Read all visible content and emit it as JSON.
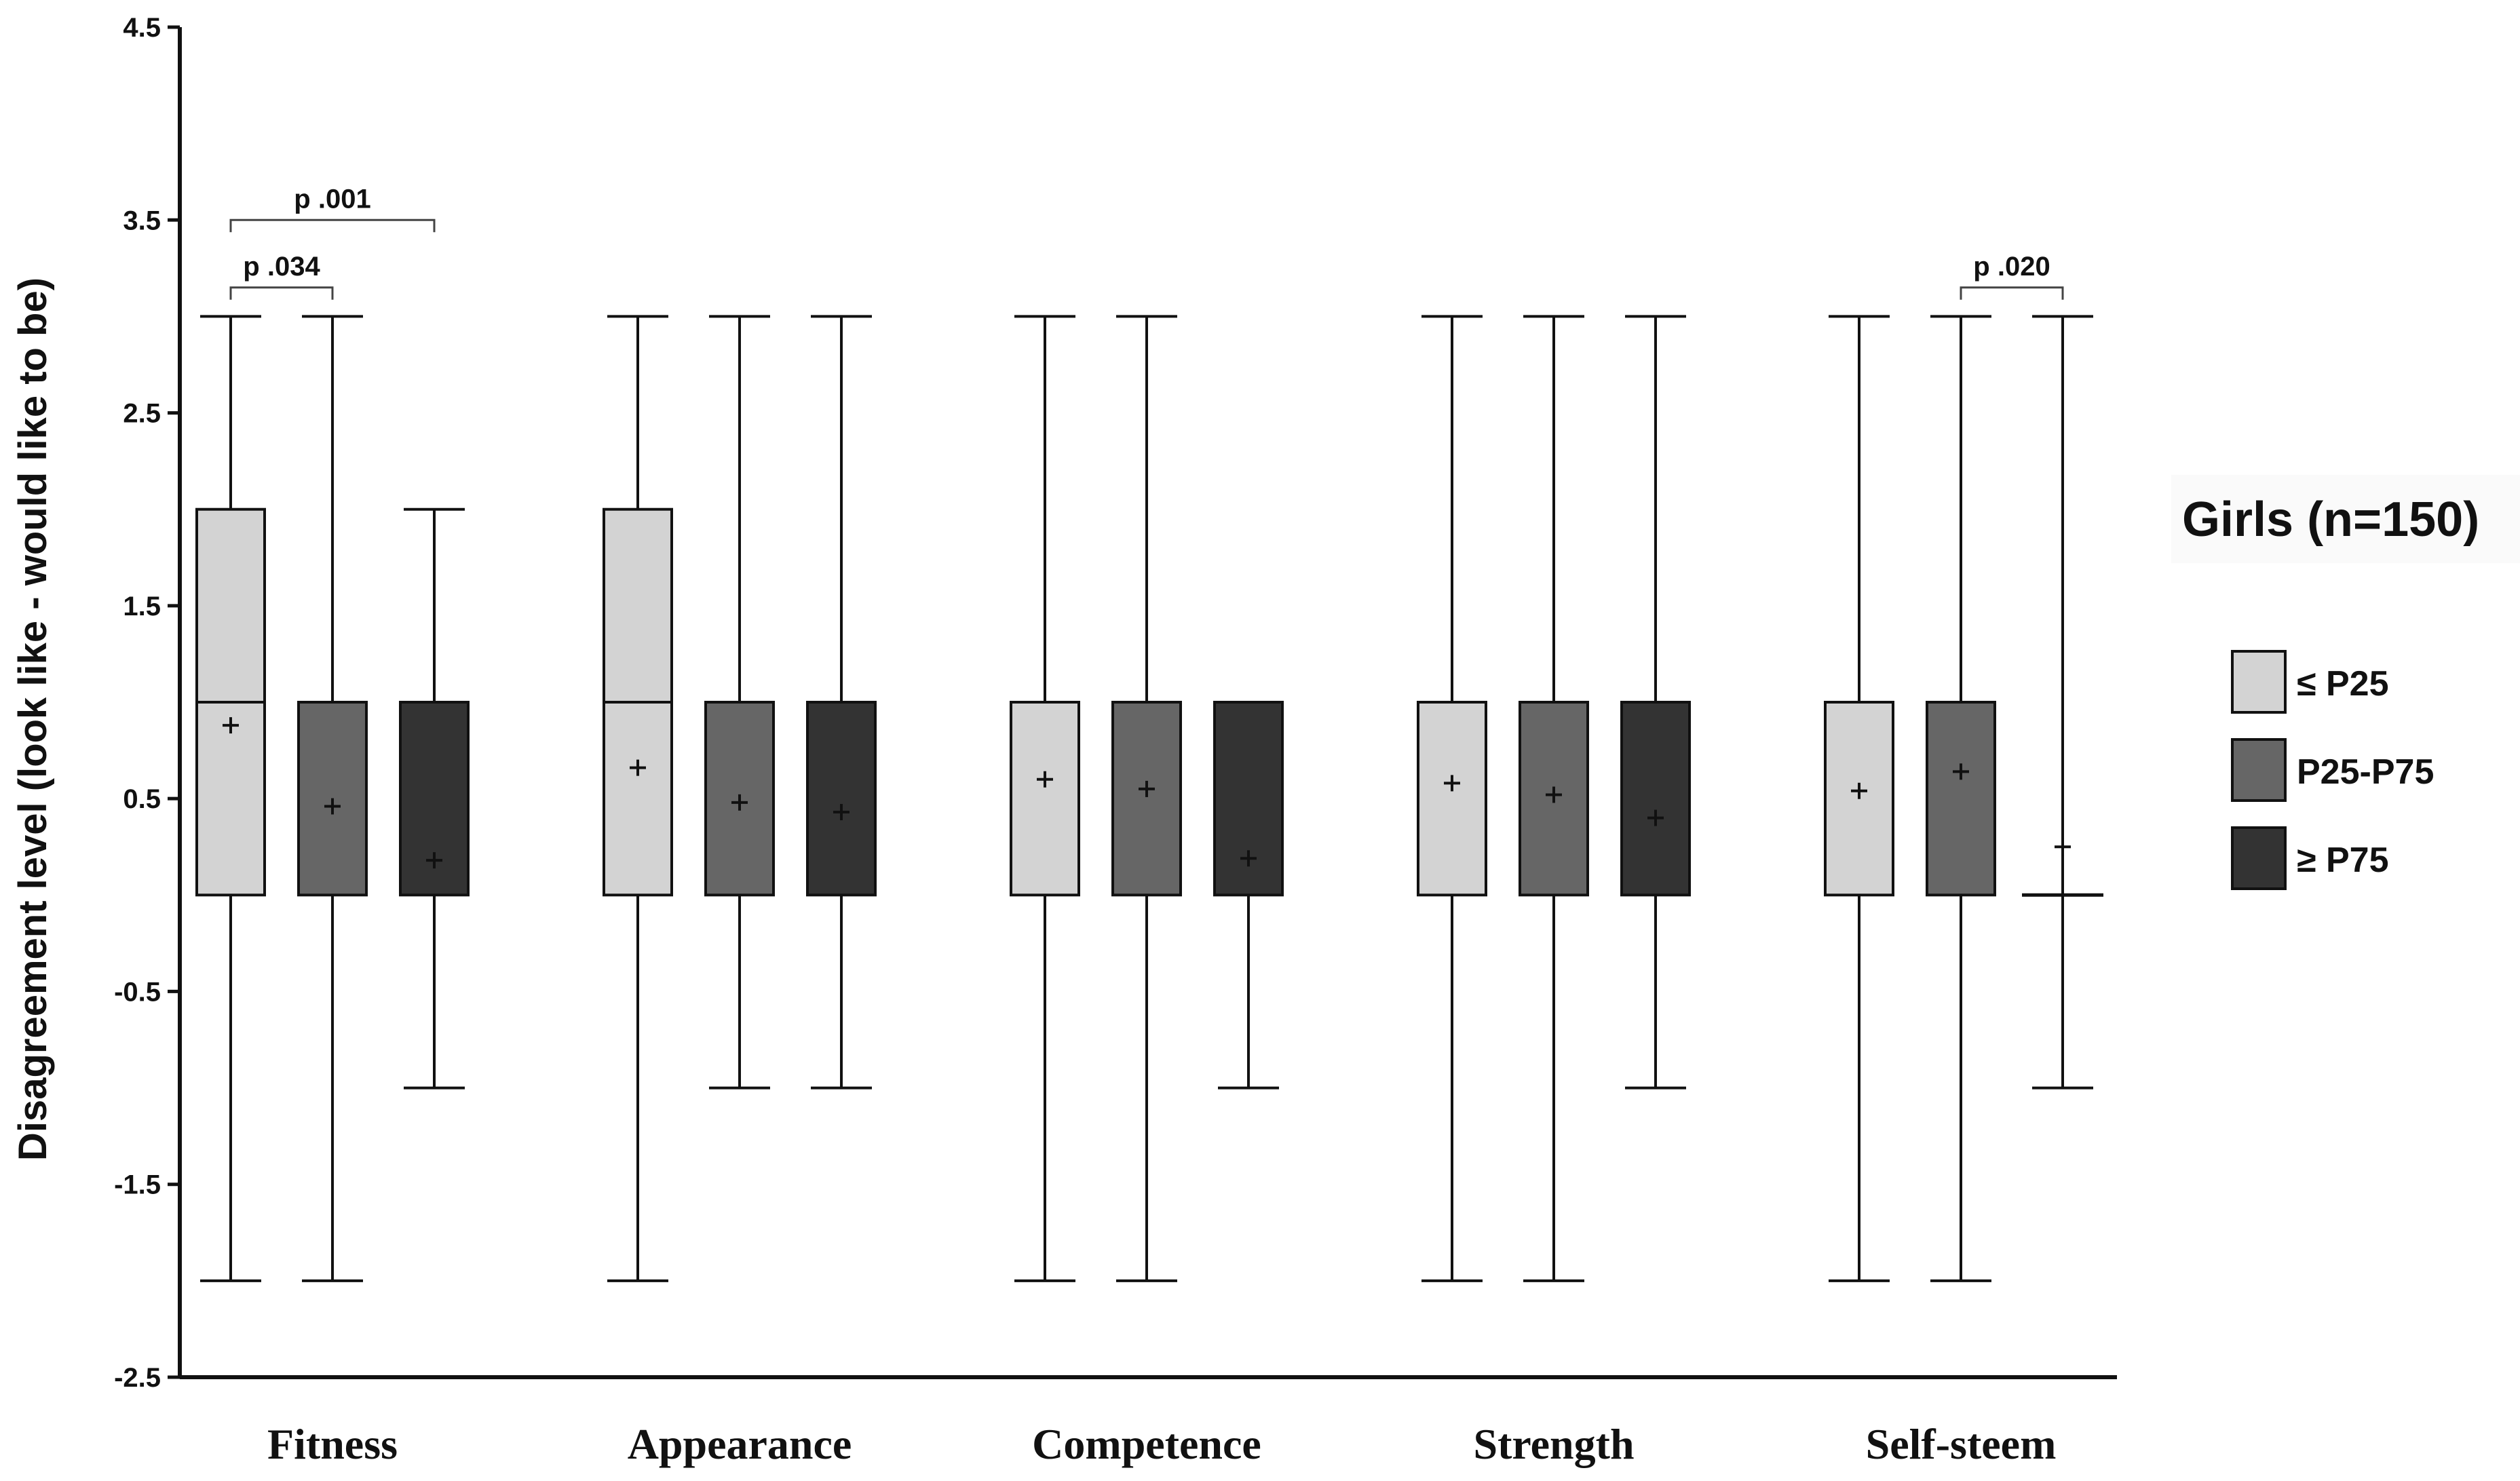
{
  "chart_data": {
    "type": "boxplot",
    "title": "",
    "xlabel": "",
    "ylabel": "Disagreement level (look like - would like to be)",
    "ylim": [
      -2.5,
      4.5
    ],
    "yticks": [
      4.5,
      3.5,
      2.5,
      1.5,
      0.5,
      -0.5,
      -1.5,
      -2.5
    ],
    "ytick_labels": [
      "4.5",
      "3.5",
      "2.5",
      "1.5",
      "0.5",
      "-0.5",
      "-1.5",
      "-2.5"
    ],
    "grid": false,
    "legend_title": "Girls (n=150)",
    "legend_position": "right",
    "series": [
      {
        "name": "≤ P25",
        "color": "#d3d3d3"
      },
      {
        "name": "P25-P75",
        "color": "#666666"
      },
      {
        "name": "≥ P75",
        "color": "#333333"
      }
    ],
    "categories": [
      "Fitness",
      "Appearance",
      "Competence",
      "Strength",
      "Self-steem"
    ],
    "boxes": [
      [
        {
          "min": -2,
          "q1": 0,
          "median": 1,
          "q3": 2,
          "max": 3,
          "mean": 0.88
        },
        {
          "min": -2,
          "q1": 0,
          "median": 1,
          "q3": 1,
          "max": 3,
          "mean": 0.46
        },
        {
          "min": -1,
          "q1": 0,
          "median": 1,
          "q3": 1,
          "max": 2,
          "mean": 0.18
        }
      ],
      [
        {
          "min": -2,
          "q1": 0,
          "median": 1,
          "q3": 2,
          "max": 3,
          "mean": 0.66
        },
        {
          "min": -1,
          "q1": 0,
          "median": 1,
          "q3": 1,
          "max": 3,
          "mean": 0.48
        },
        {
          "min": -1,
          "q1": 0,
          "median": 1,
          "q3": 1,
          "max": 3,
          "mean": 0.43
        }
      ],
      [
        {
          "min": -2,
          "q1": 0,
          "median": 1,
          "q3": 1,
          "max": 3,
          "mean": 0.6
        },
        {
          "min": -2,
          "q1": 0,
          "median": 1,
          "q3": 1,
          "max": 3,
          "mean": 0.55
        },
        {
          "min": -1,
          "q1": 0,
          "median": 1,
          "q3": 1,
          "max": 1,
          "mean": 0.19
        }
      ],
      [
        {
          "min": -2,
          "q1": 0,
          "median": 1,
          "q3": 1,
          "max": 3,
          "mean": 0.58
        },
        {
          "min": -2,
          "q1": 0,
          "median": 1,
          "q3": 1,
          "max": 3,
          "mean": 0.52
        },
        {
          "min": -1,
          "q1": 0,
          "median": 1,
          "q3": 1,
          "max": 3,
          "mean": 0.4
        }
      ],
      [
        {
          "min": -2,
          "q1": 0,
          "median": 1,
          "q3": 1,
          "max": 3,
          "mean": 0.54
        },
        {
          "min": -2,
          "q1": 0,
          "median": 1,
          "q3": 1,
          "max": 3,
          "mean": 0.64
        },
        {
          "min": -1,
          "q1": 0,
          "median": 0,
          "q3": 0,
          "max": 3,
          "mean": 0.25
        }
      ]
    ],
    "annotations": [
      {
        "text": "p .001",
        "category": 0,
        "from_series": 0,
        "to_series": 2,
        "y": 3.5
      },
      {
        "text": "p .034",
        "category": 0,
        "from_series": 0,
        "to_series": 1,
        "y": 3.15
      },
      {
        "text": "p .020",
        "category": 4,
        "from_series": 1,
        "to_series": 2,
        "y": 3.15
      }
    ]
  }
}
